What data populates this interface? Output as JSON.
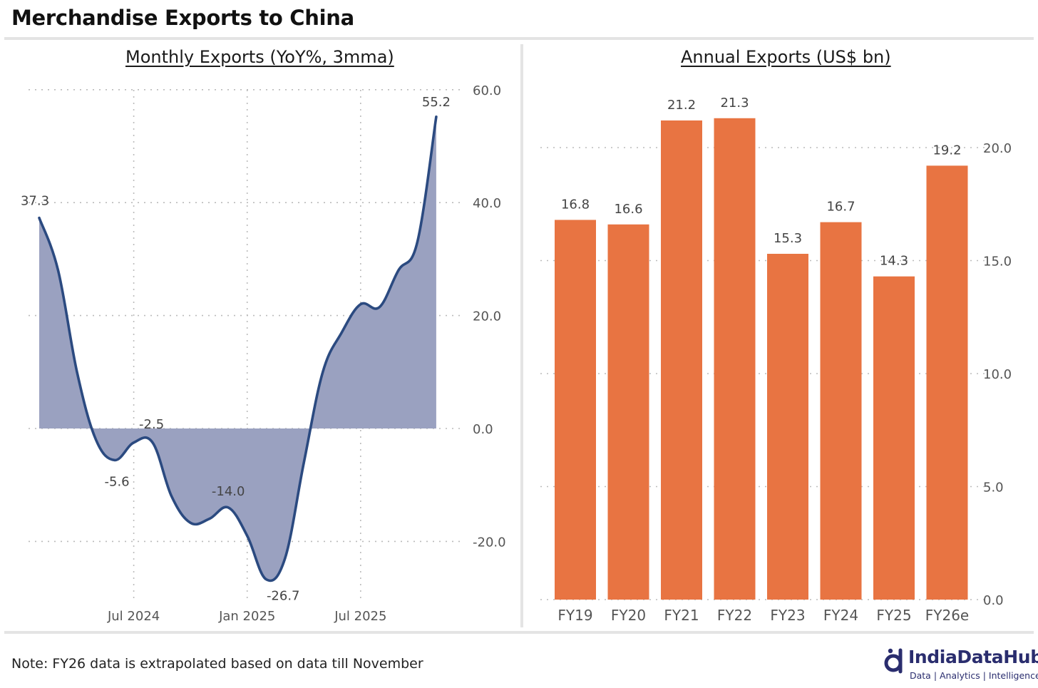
{
  "page_title": "Merchandise Exports to China",
  "footer_note": "Note: FY26 data is extrapolated based on data till November",
  "brand": {
    "name": "IndiaDataHub",
    "tagline": "Data | Analytics | Intelligence",
    "icon": "d-logo-icon",
    "color": "#2a2d6e"
  },
  "colors": {
    "line": "#2b4a80",
    "area_fill": "#9aa1c0",
    "bar": "#e87442",
    "grid": "#bbbbbb",
    "tick": "#555555"
  },
  "chart_data": [
    {
      "type": "area",
      "title": "Monthly Exports (YoY%, 3mma)",
      "xlabel": "",
      "ylabel": "",
      "x_ticks": [
        "Jul 2024",
        "Jan 2025",
        "Jul 2025"
      ],
      "x_tick_positions": [
        "2024-07",
        "2025-01",
        "2025-07"
      ],
      "ylim": [
        -30,
        60
      ],
      "y_ticks": [
        "60.0",
        "40.0",
        "20.0",
        "0.0",
        "-20.0"
      ],
      "y_tick_values": [
        60,
        40,
        20,
        0,
        -20
      ],
      "grid": true,
      "series": [
        {
          "x": [
            "2024-02",
            "2024-03",
            "2024-04",
            "2024-05",
            "2024-06",
            "2024-07",
            "2024-08",
            "2024-09",
            "2024-10",
            "2024-11",
            "2024-12",
            "2025-01",
            "2025-02",
            "2025-03",
            "2025-04",
            "2025-05",
            "2025-06",
            "2025-07",
            "2025-08",
            "2025-09",
            "2025-10",
            "2025-11"
          ],
          "values": [
            37.3,
            28.0,
            10.0,
            -2.0,
            -5.6,
            -2.5,
            -2.5,
            -12.0,
            -16.7,
            -16.0,
            -14.0,
            -19.0,
            -26.7,
            -23.0,
            -6.0,
            10.0,
            17.0,
            22.0,
            21.5,
            28.0,
            33.0,
            55.2
          ]
        }
      ],
      "data_labels": [
        {
          "text": "37.3",
          "x": "2024-02",
          "y": 37.3
        },
        {
          "text": "-5.6",
          "x": "2024-06",
          "y": -5.6
        },
        {
          "text": "-2.5",
          "x": "2024-07",
          "y": -2.5
        },
        {
          "text": "-14.0",
          "x": "2024-12",
          "y": -14.0
        },
        {
          "text": "-26.7",
          "x": "2025-02",
          "y": -26.7
        },
        {
          "text": "55.2",
          "x": "2025-11",
          "y": 55.2
        }
      ]
    },
    {
      "type": "bar",
      "title": "Annual Exports (US$ bn)",
      "xlabel": "",
      "ylabel": "",
      "categories": [
        "FY19",
        "FY20",
        "FY21",
        "FY22",
        "FY23",
        "FY24",
        "FY25",
        "FY26e"
      ],
      "values": [
        16.8,
        16.6,
        21.2,
        21.3,
        15.3,
        16.7,
        14.3,
        19.2
      ],
      "value_labels": [
        "16.8",
        "16.6",
        "21.2",
        "21.3",
        "15.3",
        "16.7",
        "14.3",
        "19.2"
      ],
      "ylim": [
        0,
        22.5
      ],
      "y_ticks": [
        "20.0",
        "15.0",
        "10.0",
        "5.0",
        "0.0"
      ],
      "y_tick_values": [
        20,
        15,
        10,
        5,
        0
      ],
      "grid": true
    }
  ]
}
